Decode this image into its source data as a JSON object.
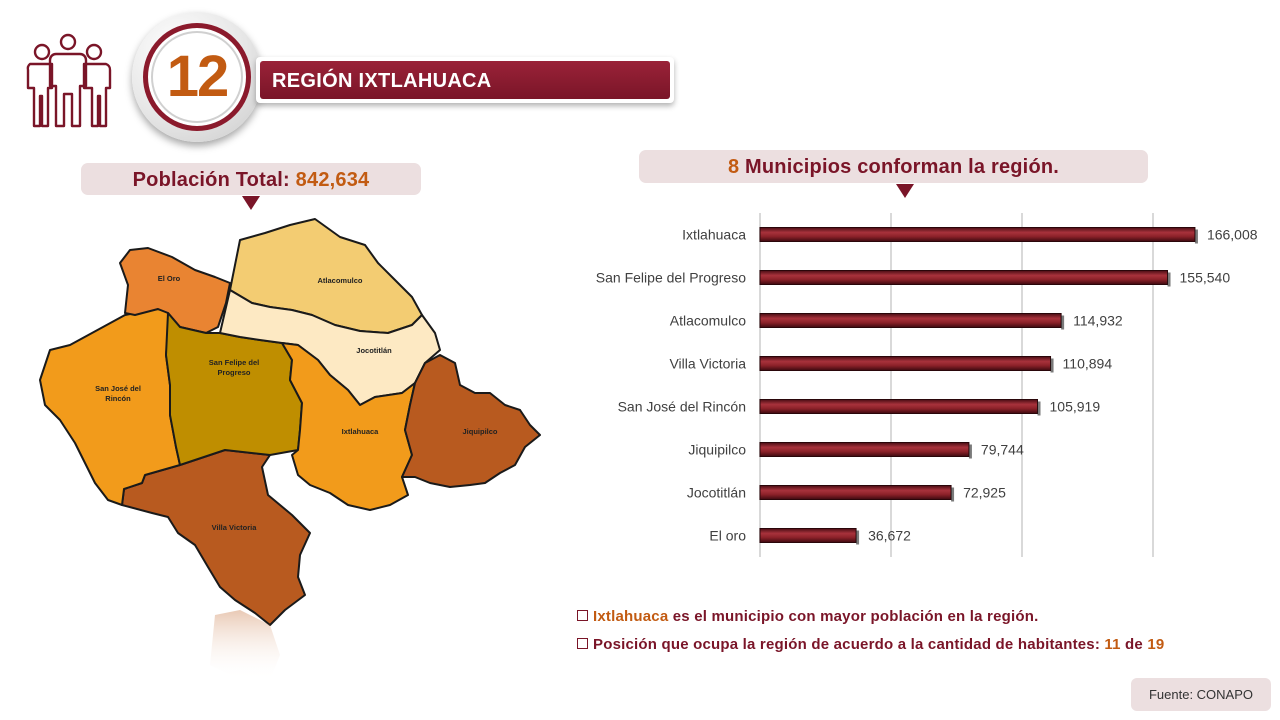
{
  "header": {
    "region_number": "12",
    "region_title": "REGIÓN IXTLAHUACA"
  },
  "population": {
    "label": "Población Total:",
    "value": "842,634"
  },
  "municipalities": {
    "count": "8",
    "label": "Municipios conforman la región."
  },
  "map": {
    "labels": [
      "El Oro",
      "Atlacomulco",
      "Jocotitlán",
      "San Felipe del",
      "Progreso",
      "San José del",
      "Rincón",
      "Ixtlahuaca",
      "Jiquipilco",
      "Villa Victoria"
    ]
  },
  "colors": {
    "brand": "#7a1528",
    "accent": "#c25b12",
    "pill": "#ecdfe0",
    "bar": "#7b1a24"
  },
  "chart_data": {
    "type": "bar",
    "orientation": "horizontal",
    "categories": [
      "Ixtlahuaca",
      "San Felipe del Progreso",
      "Atlacomulco",
      "Villa Victoria",
      "San José del Rincón",
      "Jiquipilco",
      "Jocotitlán",
      "El oro"
    ],
    "values": [
      166008,
      155540,
      114932,
      110894,
      105919,
      79744,
      72925,
      36672
    ],
    "value_labels": [
      "166,008",
      "155,540",
      "114,932",
      "110,894",
      "105,919",
      "79,744",
      "72,925",
      "36,672"
    ],
    "xlim": [
      0,
      200000
    ],
    "grid": true,
    "legend": "none"
  },
  "notes": {
    "note1_highlight": "Ixtlahuaca",
    "note1_text": " es el municipio con mayor población en la región.",
    "note2_text": "Posición que ocupa la región de acuerdo a la cantidad de habitantes: ",
    "note2_rank": "11",
    "note2_of": " de ",
    "note2_total": "19"
  },
  "source": "Fuente: CONAPO"
}
